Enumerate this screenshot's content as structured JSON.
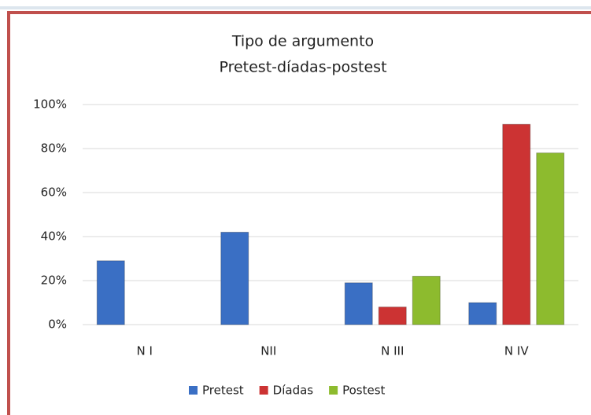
{
  "chart_data": {
    "type": "bar",
    "title": "Tipo de argumento",
    "subtitle": "Pretest-díadas-postest",
    "categories": [
      "N I",
      "NII",
      "N III",
      "N IV"
    ],
    "series": [
      {
        "name": "Pretest",
        "color": "#3a6fc4",
        "values": [
          29,
          42,
          19,
          10
        ]
      },
      {
        "name": "Díadas",
        "color": "#cc3333",
        "values": [
          0,
          0,
          8,
          91
        ]
      },
      {
        "name": "Postest",
        "color": "#8dbb2e",
        "values": [
          0,
          0,
          22,
          78
        ]
      }
    ],
    "ylim": [
      0,
      100
    ],
    "yticks": [
      {
        "value": 0,
        "label": "0%"
      },
      {
        "value": 20,
        "label": "20%"
      },
      {
        "value": 40,
        "label": "40%"
      },
      {
        "value": 60,
        "label": "60%"
      },
      {
        "value": 80,
        "label": "80%"
      },
      {
        "value": 100,
        "label": "100%"
      }
    ],
    "grid": true,
    "legend": "bottom"
  }
}
